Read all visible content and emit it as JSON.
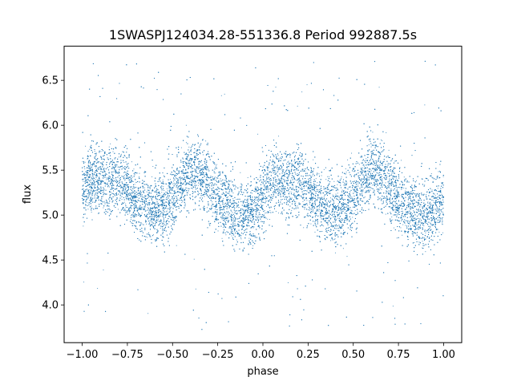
{
  "chart_data": {
    "type": "scatter",
    "title": "1SWASPJ124034.28-551336.8 Period 992887.5s",
    "xlabel": "phase",
    "ylabel": "flux",
    "xlim": [
      -1.1,
      1.1
    ],
    "ylim": [
      3.58,
      6.88
    ],
    "xticks": [
      -1.0,
      -0.75,
      -0.5,
      -0.25,
      0.0,
      0.25,
      0.5,
      0.75,
      1.0
    ],
    "xtick_labels": [
      "−1.00",
      "−0.75",
      "−0.50",
      "−0.25",
      "0.00",
      "0.25",
      "0.50",
      "0.75",
      "1.00"
    ],
    "yticks": [
      4.0,
      4.5,
      5.0,
      5.5,
      6.0,
      6.5
    ],
    "ytick_labels": [
      "4.0",
      "4.5",
      "5.0",
      "5.5",
      "6.0",
      "6.5"
    ],
    "marker_color": "#1f77b4",
    "marker_size": 1,
    "grid": false,
    "series": [
      {
        "x": [
          -1.0,
          -0.95,
          -0.9,
          -0.85,
          -0.8,
          -0.75,
          -0.7,
          -0.65,
          -0.6,
          -0.55,
          -0.5,
          -0.45,
          -0.4,
          -0.35,
          -0.3,
          -0.25,
          -0.2,
          -0.15,
          -0.1,
          -0.05,
          0.0,
          0.05,
          0.1,
          0.15,
          0.2,
          0.25,
          0.3,
          0.35,
          0.4,
          0.45,
          0.5,
          0.55,
          0.6,
          0.65,
          0.7,
          0.75,
          0.8,
          0.85,
          0.9,
          0.95,
          1.0
        ],
        "y_center": [
          5.3,
          5.4,
          5.4,
          5.35,
          5.4,
          5.3,
          5.15,
          5.1,
          5.05,
          5.1,
          5.2,
          5.4,
          5.5,
          5.45,
          5.35,
          5.2,
          5.1,
          5.0,
          5.0,
          5.05,
          5.2,
          5.4,
          5.4,
          5.35,
          5.4,
          5.3,
          5.15,
          5.1,
          5.05,
          5.1,
          5.2,
          5.4,
          5.5,
          5.45,
          5.35,
          5.2,
          5.1,
          5.0,
          5.0,
          5.05,
          5.2
        ],
        "y_spread": 0.25,
        "points_per_bin": 420,
        "outlier_range": [
          3.72,
          6.72
        ]
      }
    ]
  }
}
